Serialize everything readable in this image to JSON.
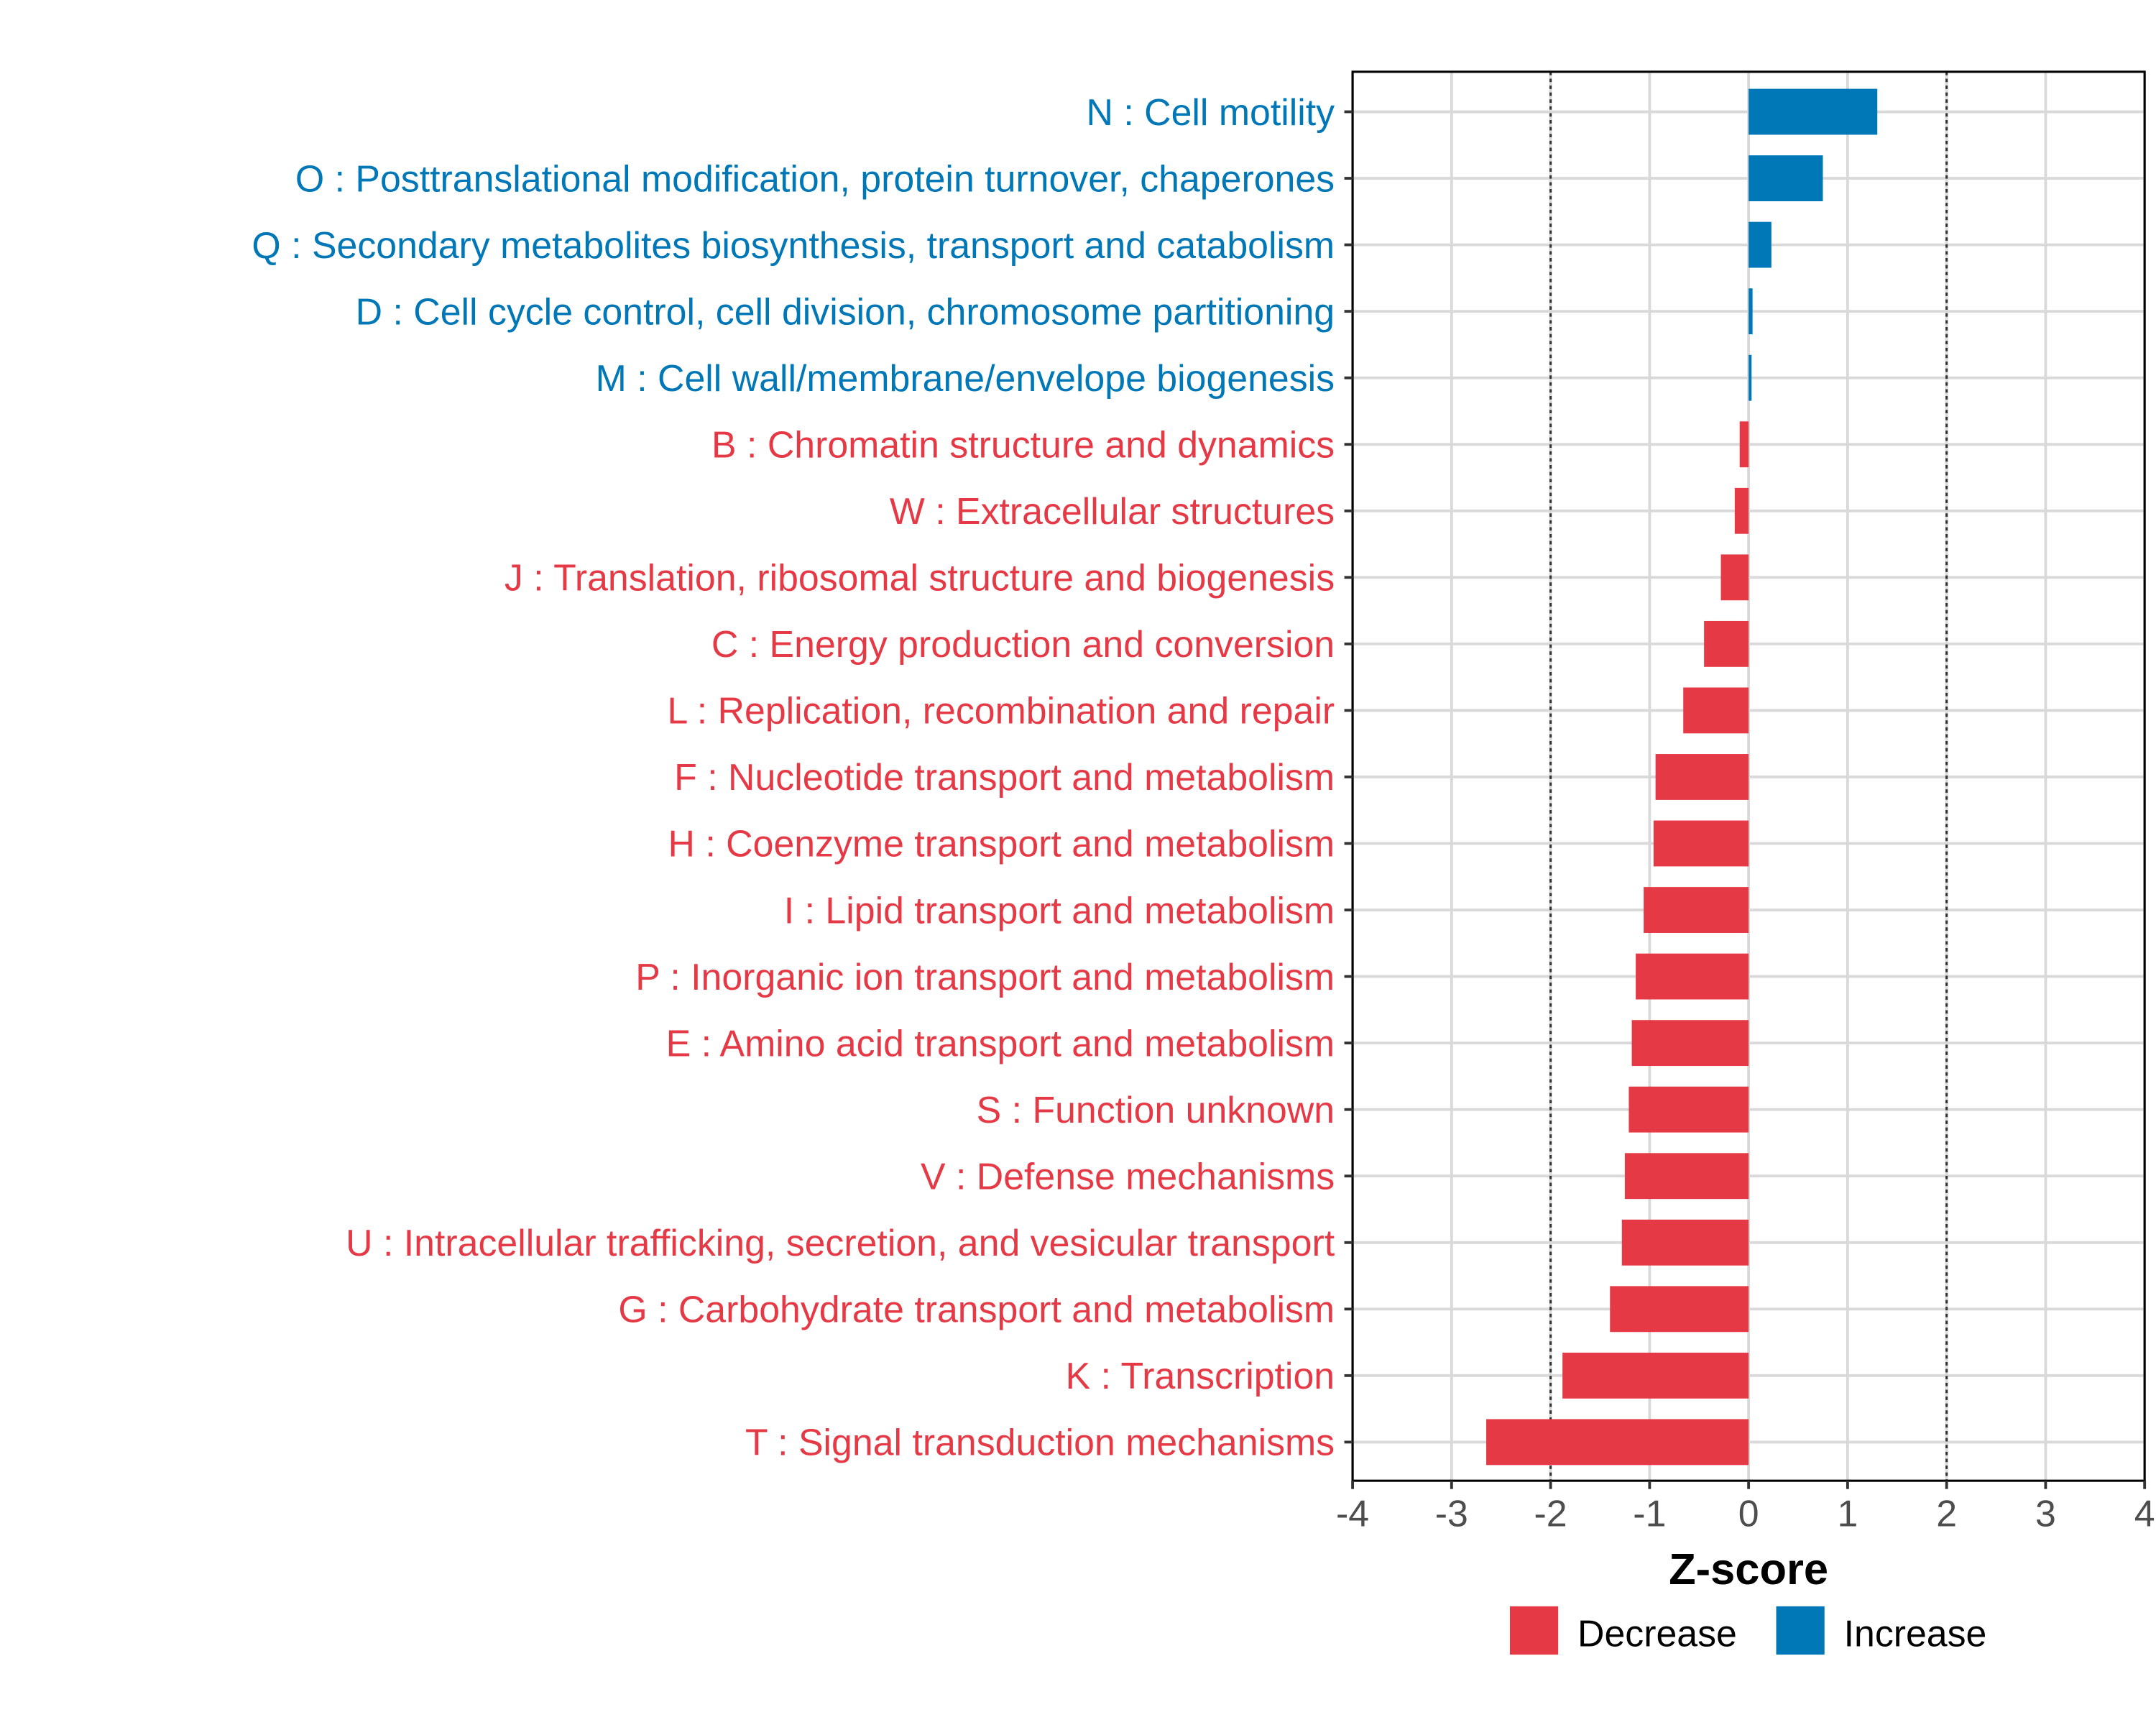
{
  "chart_data": {
    "type": "bar",
    "orientation": "horizontal",
    "title": "",
    "xlabel": "Z-score",
    "ylabel": "",
    "xlim": [
      -4,
      4
    ],
    "x_ticks": [
      -4,
      -3,
      -2,
      -1,
      0,
      1,
      2,
      3,
      4
    ],
    "x_tick_labels": [
      "-4",
      "-3",
      "-2",
      "-1",
      "0",
      "1",
      "2",
      "3",
      "4"
    ],
    "reference_lines": [
      -2,
      2
    ],
    "grid": true,
    "legend_position": "bottom",
    "legend": [
      {
        "label": "Decrease",
        "color": "#E63946"
      },
      {
        "label": "Increase",
        "color": "#0077B6"
      }
    ],
    "categories": [
      "N : Cell motility",
      "O : Posttranslational modification, protein turnover, chaperones",
      "Q : Secondary metabolites biosynthesis, transport and catabolism",
      "D : Cell cycle control, cell division, chromosome partitioning",
      "M : Cell wall/membrane/envelope biogenesis",
      "B : Chromatin structure and dynamics",
      "W : Extracellular structures",
      "J : Translation, ribosomal structure and biogenesis",
      "C : Energy production and conversion",
      "L : Replication, recombination and repair",
      "F : Nucleotide transport and metabolism",
      "H : Coenzyme transport and metabolism",
      "I : Lipid transport and metabolism",
      "P : Inorganic ion transport and metabolism",
      "E : Amino acid transport and metabolism",
      "S : Function unknown",
      "V : Defense mechanisms",
      "U : Intracellular trafficking, secretion, and vesicular transport",
      "G : Carbohydrate transport and metabolism",
      "K : Transcription",
      "T : Signal transduction mechanisms"
    ],
    "values": [
      1.3,
      0.75,
      0.23,
      0.04,
      0.03,
      -0.09,
      -0.14,
      -0.28,
      -0.45,
      -0.66,
      -0.94,
      -0.96,
      -1.06,
      -1.14,
      -1.18,
      -1.21,
      -1.25,
      -1.28,
      -1.4,
      -1.88,
      -2.65
    ],
    "groups": [
      "Increase",
      "Increase",
      "Increase",
      "Increase",
      "Increase",
      "Decrease",
      "Decrease",
      "Decrease",
      "Decrease",
      "Decrease",
      "Decrease",
      "Decrease",
      "Decrease",
      "Decrease",
      "Decrease",
      "Decrease",
      "Decrease",
      "Decrease",
      "Decrease",
      "Decrease",
      "Decrease"
    ],
    "colors": {
      "Increase": "#0077B6",
      "Decrease": "#E63946"
    }
  }
}
